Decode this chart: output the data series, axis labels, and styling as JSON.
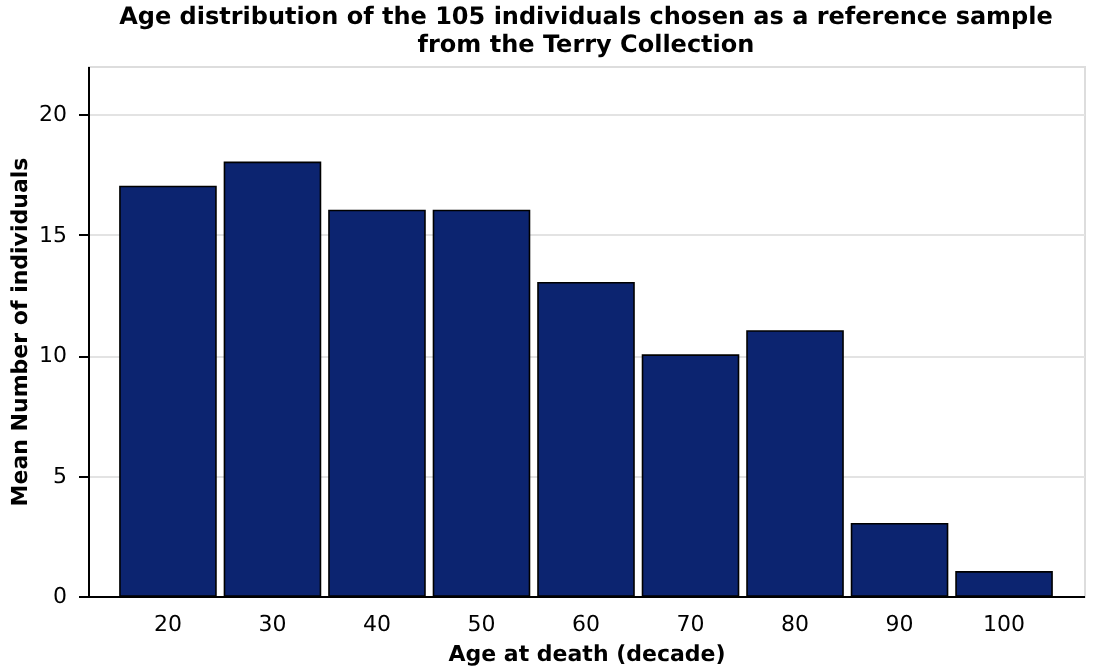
{
  "chart_data": {
    "type": "bar",
    "title": "Age distribution of the 105 individuals chosen as a reference sample from the Terry Collection",
    "xlabel": "Age at death (decade)",
    "ylabel": "Mean Number of individuals",
    "categories": [
      "20",
      "30",
      "40",
      "50",
      "60",
      "70",
      "80",
      "90",
      "100"
    ],
    "values": [
      17,
      18,
      16,
      16,
      13,
      10,
      11,
      3,
      1
    ],
    "color": "#0c2470",
    "ylim": [
      0,
      22
    ],
    "yticks": [
      0,
      5,
      10,
      15,
      20
    ],
    "grid": "y"
  }
}
